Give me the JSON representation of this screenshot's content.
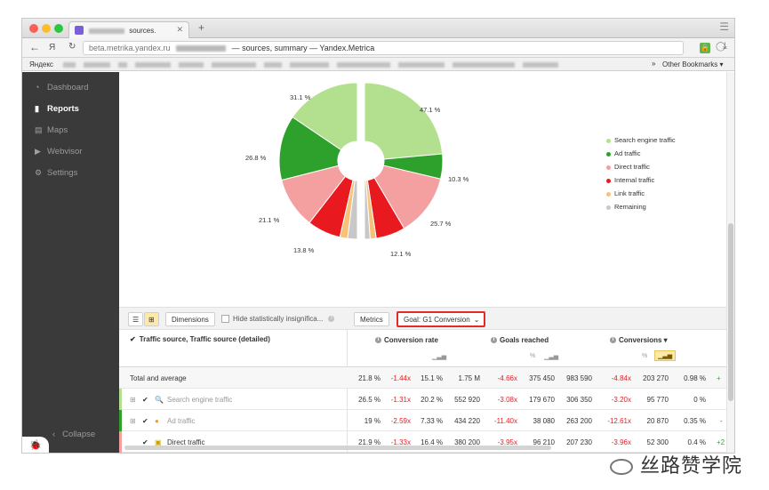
{
  "browser": {
    "tab_title": "sources.",
    "new_tab_label": "+",
    "address_domain": "beta.metrika.yandex.ru",
    "address_rest": "— sources, summary — Yandex.Metrica",
    "yandex_label": "Яндекс",
    "other_bookmarks": "Other Bookmarks ▾",
    "bookmarks_chevron": "»"
  },
  "sidebar": {
    "items": [
      {
        "label": "Dashboard",
        "icon": "dashboard-icon"
      },
      {
        "label": "Reports",
        "icon": "bar-chart-icon"
      },
      {
        "label": "Maps",
        "icon": "map-icon"
      },
      {
        "label": "Webvisor",
        "icon": "play-icon"
      },
      {
        "label": "Settings",
        "icon": "gear-icon"
      }
    ],
    "collapse_label": "Collapse"
  },
  "chart_data": {
    "type": "pie",
    "title": "",
    "slices": [
      {
        "name": "Search engine traffic",
        "values": [
          47.1,
          31.1
        ],
        "color": "#b3e08f"
      },
      {
        "name": "Ad traffic",
        "values": [
          10.3,
          26.8
        ],
        "color": "#2ea02c"
      },
      {
        "name": "Direct traffic",
        "values": [
          25.7,
          21.1
        ],
        "color": "#f4a0a0"
      },
      {
        "name": "Internal traffic",
        "values": [
          12.1,
          13.8
        ],
        "color": "#e8191f"
      },
      {
        "name": "Link traffic",
        "values": [
          2.5,
          3.2
        ],
        "color": "#f6c27a"
      },
      {
        "name": "Remaining",
        "values": [
          2.3,
          4.0
        ],
        "color": "#c8c8c8"
      }
    ],
    "labels": [
      "47.1 %",
      "10.3 %",
      "25.7 %",
      "12.1 %",
      "13.8 %",
      "21.1 %",
      "26.8 %",
      "31.1 %"
    ],
    "legend_position": "right"
  },
  "toolbar": {
    "dimensions_label": "Dimensions",
    "hide_label": "Hide statistically insignifica...",
    "metrics_label": "Metrics",
    "goal_label": "Goal: G1 Conversion"
  },
  "table": {
    "dimension_header": "Traffic source, Traffic source (detailed)",
    "metric_headers": [
      "Conversion rate",
      "Goals reached",
      "Conversions ▾"
    ],
    "sub_units": [
      "%",
      "%"
    ],
    "rows": [
      {
        "label": "Total and average",
        "cells": [
          "21.8 %",
          "-1.44x",
          "15.1 %",
          "1.75 M",
          "-4.66x",
          "375 450",
          "983 590",
          "-4.84x",
          "203 270",
          "0.98 %",
          "+"
        ]
      },
      {
        "label": "Search engine traffic",
        "cells": [
          "26.5 %",
          "-1.31x",
          "20.2 %",
          "552 920",
          "-3.08x",
          "179 670",
          "306 350",
          "-3.20x",
          "95 770",
          "0 %",
          ""
        ]
      },
      {
        "label": "Ad traffic",
        "cells": [
          "19 %",
          "-2.59x",
          "7.33 %",
          "434 220",
          "-11.40x",
          "38 080",
          "263 200",
          "-12.61x",
          "20 870",
          "0.35 %",
          "-"
        ]
      },
      {
        "label": "Direct traffic",
        "cells": [
          "21.9 %",
          "-1.33x",
          "16.4 %",
          "380 200",
          "-3.95x",
          "96 210",
          "207 230",
          "-3.96x",
          "52 300",
          "0.4 %",
          "+2"
        ]
      }
    ]
  },
  "watermark": "丝路赞学院",
  "colors": {
    "accent_red": "#e22b2b",
    "sidebar_bg": "#3a3a3a",
    "negative": "#d9262a",
    "positive": "#39a33d"
  }
}
